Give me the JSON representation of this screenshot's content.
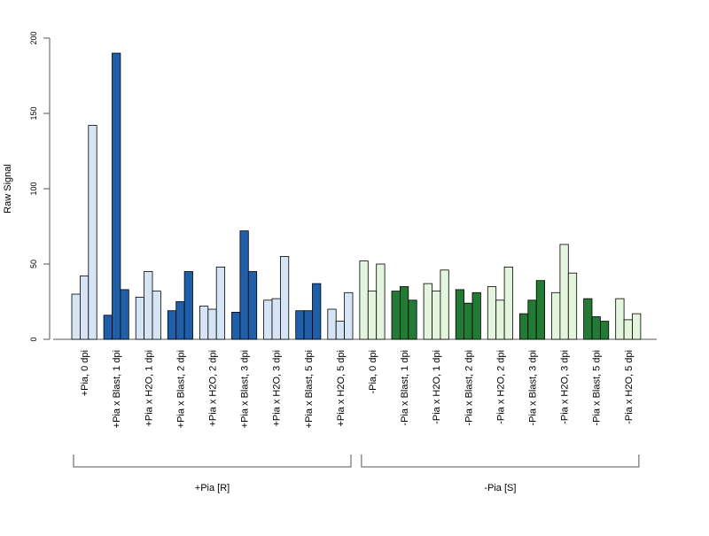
{
  "chart_data": {
    "type": "bar",
    "ylabel": "Raw Signal",
    "ylim": [
      0,
      200
    ],
    "yticks": [
      0,
      50,
      100,
      150,
      200
    ],
    "grid": false,
    "legend": "none",
    "colors": {
      "light_blue": "#d6e5f5",
      "dark_blue": "#1f5ea8",
      "light_green": "#e3f5dc",
      "dark_green": "#237a34",
      "outline": "#000000",
      "axis": "#555555"
    },
    "categories": [
      {
        "label": "+Pia, 0 dpi",
        "values": [
          30,
          42,
          142
        ],
        "color": "#d6e5f5"
      },
      {
        "label": "+Pia x Blast, 1 dpi",
        "values": [
          16,
          190,
          33
        ],
        "color": "#1f5ea8"
      },
      {
        "label": "+Pia x H2O, 1 dpi",
        "values": [
          28,
          45,
          32
        ],
        "color": "#d6e5f5"
      },
      {
        "label": "+Pia x Blast, 2 dpi",
        "values": [
          19,
          25,
          45
        ],
        "color": "#1f5ea8"
      },
      {
        "label": "+Pia x H2O, 2 dpi",
        "values": [
          22,
          20,
          48
        ],
        "color": "#d6e5f5"
      },
      {
        "label": "+Pia x Blast, 3 dpi",
        "values": [
          18,
          72,
          45
        ],
        "color": "#1f5ea8"
      },
      {
        "label": "+Pia x H2O, 3 dpi",
        "values": [
          26,
          27,
          55
        ],
        "color": "#d6e5f5"
      },
      {
        "label": "+Pia x Blast, 5 dpi",
        "values": [
          19,
          19,
          37
        ],
        "color": "#1f5ea8"
      },
      {
        "label": "+Pia x H2O, 5 dpi",
        "values": [
          20,
          12,
          31
        ],
        "color": "#d6e5f5"
      },
      {
        "label": "-Pia, 0 dpi",
        "values": [
          52,
          32,
          50
        ],
        "color": "#e3f5dc"
      },
      {
        "label": "-Pia x Blast, 1 dpi",
        "values": [
          32,
          35,
          26
        ],
        "color": "#237a34"
      },
      {
        "label": "-Pia x H2O, 1 dpi",
        "values": [
          37,
          32,
          46
        ],
        "color": "#e3f5dc"
      },
      {
        "label": "-Pia x Blast, 2 dpi",
        "values": [
          33,
          24,
          31
        ],
        "color": "#237a34"
      },
      {
        "label": "-Pia x H2O, 2 dpi",
        "values": [
          35,
          26,
          48
        ],
        "color": "#e3f5dc"
      },
      {
        "label": "-Pia x Blast, 3 dpi",
        "values": [
          17,
          26,
          39
        ],
        "color": "#237a34"
      },
      {
        "label": "-Pia x H2O, 3 dpi",
        "values": [
          31,
          63,
          44
        ],
        "color": "#e3f5dc"
      },
      {
        "label": "-Pia x Blast, 5 dpi",
        "values": [
          27,
          15,
          12
        ],
        "color": "#237a34"
      },
      {
        "label": "-Pia x H2O, 5 dpi",
        "values": [
          27,
          13,
          17
        ],
        "color": "#e3f5dc"
      }
    ],
    "groups": [
      {
        "label": "+Pia [R]",
        "from": 0,
        "to": 8
      },
      {
        "label": "-Pia [S]",
        "from": 9,
        "to": 17
      }
    ]
  }
}
